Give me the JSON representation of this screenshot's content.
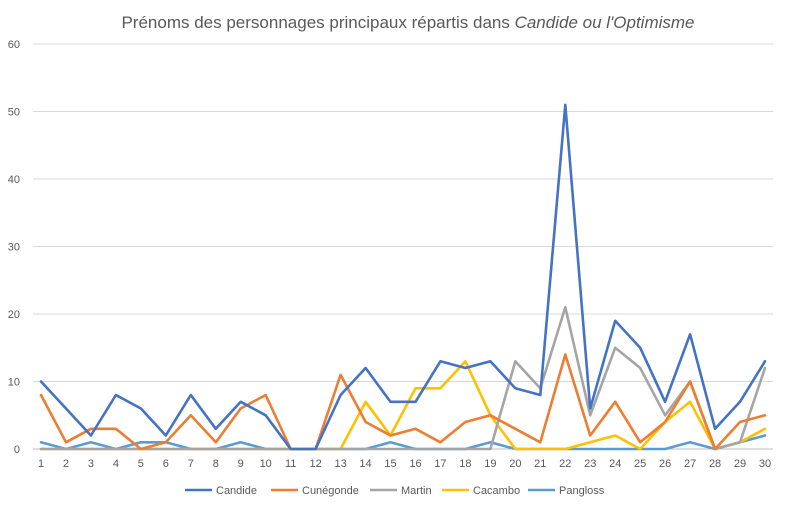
{
  "chart_data": {
    "type": "line",
    "title_prefix": "Prénoms des personnages principaux répartis dans ",
    "title_italic": "Candide ou l'Optimisme",
    "xlabel": "",
    "ylabel": "",
    "ylim": [
      0,
      60
    ],
    "yticks": [
      0,
      10,
      20,
      30,
      40,
      50,
      60
    ],
    "grid": true,
    "legend_position": "bottom",
    "categories": [
      "1",
      "2",
      "3",
      "4",
      "5",
      "6",
      "7",
      "8",
      "9",
      "10",
      "11",
      "12",
      "13",
      "14",
      "15",
      "16",
      "17",
      "18",
      "19",
      "20",
      "21",
      "22",
      "23",
      "24",
      "25",
      "26",
      "27",
      "28",
      "29",
      "30"
    ],
    "series": [
      {
        "name": "Candide",
        "color": "#4472c4",
        "values": [
          10,
          6,
          2,
          8,
          6,
          2,
          8,
          3,
          7,
          5,
          0,
          0,
          8,
          12,
          7,
          7,
          13,
          12,
          13,
          9,
          8,
          51,
          6,
          19,
          15,
          7,
          17,
          3,
          7,
          13
        ]
      },
      {
        "name": "Cunégonde",
        "color": "#ed7d31",
        "values": [
          8,
          1,
          3,
          3,
          0,
          1,
          5,
          1,
          6,
          8,
          0,
          0,
          11,
          4,
          2,
          3,
          1,
          4,
          5,
          3,
          1,
          14,
          2,
          7,
          1,
          4,
          10,
          0,
          4,
          5
        ]
      },
      {
        "name": "Martin",
        "color": "#a5a5a5",
        "values": [
          0,
          0,
          0,
          0,
          0,
          0,
          0,
          0,
          0,
          0,
          0,
          0,
          0,
          0,
          0,
          0,
          0,
          0,
          0,
          13,
          9,
          21,
          5,
          15,
          12,
          5,
          10,
          0,
          1,
          12
        ]
      },
      {
        "name": "Cacambo",
        "color": "#ffc000",
        "values": [
          0,
          0,
          0,
          0,
          0,
          0,
          0,
          0,
          0,
          0,
          0,
          0,
          0,
          7,
          2,
          9,
          9,
          13,
          5,
          0,
          0,
          0,
          1,
          2,
          0,
          4,
          7,
          0,
          1,
          3
        ]
      },
      {
        "name": "Pangloss",
        "color": "#5b9bd5",
        "values": [
          1,
          0,
          1,
          0,
          1,
          1,
          0,
          0,
          1,
          0,
          0,
          0,
          0,
          0,
          1,
          0,
          0,
          0,
          1,
          0,
          0,
          0,
          0,
          0,
          0,
          0,
          1,
          0,
          1,
          2
        ]
      }
    ]
  }
}
